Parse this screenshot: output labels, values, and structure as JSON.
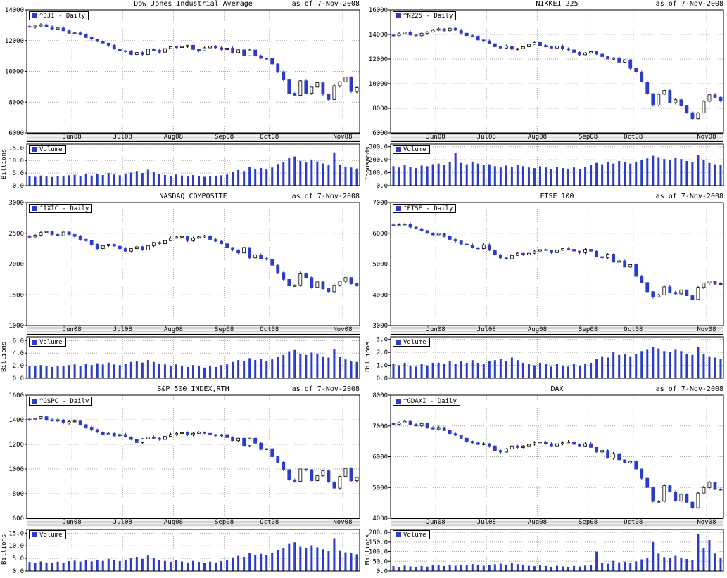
{
  "colors": {
    "candle": "#2a3cc8",
    "volume_bar": "#2a3cc8",
    "grid": "#aaaaaa",
    "axis": "#000000",
    "band": "#e0e0e0"
  },
  "chart_data": [
    {
      "type": "candlestick",
      "title": "Dow Jones Industrial Average",
      "as_of": "as of  7-Nov-2008",
      "symbol_legend": "^DJI - Daily",
      "volume_legend": "Volume",
      "vol_axis_label": "Billions",
      "y_min": 6000,
      "y_max": 14000,
      "y_ticks": [
        6000,
        8000,
        10000,
        12000,
        14000
      ],
      "vol_ticks": [
        0,
        5,
        10,
        15
      ],
      "vol_max": 16.5,
      "x_labels": [
        "Jun08",
        "Jul08",
        "Aug08",
        "Sep08",
        "Oct08",
        "Nov08"
      ],
      "x_start_indices": [
        8,
        17,
        26,
        35,
        43,
        56
      ],
      "closes": [
        12870,
        12950,
        13030,
        12900,
        12750,
        12820,
        12640,
        12480,
        12500,
        12380,
        12200,
        12100,
        11950,
        11840,
        11700,
        11450,
        11350,
        11290,
        11100,
        11230,
        11100,
        11450,
        11370,
        11250,
        11480,
        11600,
        11550,
        11620,
        11700,
        11430,
        11350,
        11530,
        11650,
        11540,
        11420,
        11510,
        11220,
        11400,
        11020,
        11390,
        11020,
        10850,
        10830,
        10480,
        9955,
        9450,
        8580,
        8450,
        9390,
        8580,
        8980,
        9265,
        8520,
        8175,
        9065,
        9325,
        9625,
        8695,
        8945
      ],
      "volumes": [
        3.8,
        3.5,
        4.0,
        3.6,
        3.4,
        3.9,
        3.6,
        4.1,
        4.3,
        3.9,
        4.5,
        4.0,
        4.6,
        4.2,
        5.0,
        4.4,
        4.1,
        4.6,
        5.2,
        5.8,
        5.0,
        6.3,
        5.4,
        4.6,
        4.2,
        3.9,
        4.4,
        4.0,
        3.6,
        4.2,
        3.8,
        3.5,
        3.9,
        3.6,
        4.1,
        4.4,
        5.6,
        6.2,
        5.8,
        7.4,
        6.6,
        7.0,
        6.4,
        7.2,
        8.6,
        9.4,
        11.2,
        11.6,
        9.8,
        9.2,
        10.4,
        9.6,
        8.8,
        8.2,
        13.2,
        8.4,
        7.6,
        7.2,
        6.8
      ]
    },
    {
      "type": "candlestick",
      "title": "NIKKEI 225",
      "as_of": "as of  7-Nov-2008",
      "symbol_legend": "^N225 - Daily",
      "volume_legend": "Volume",
      "vol_axis_label": "Thousands",
      "y_min": 6000,
      "y_max": 16000,
      "y_ticks": [
        6000,
        8000,
        10000,
        12000,
        14000,
        16000
      ],
      "vol_ticks": [
        0,
        100,
        200,
        300
      ],
      "vol_max": 320,
      "x_labels": [
        "Jun08",
        "Jul08",
        "Aug08",
        "Sep08",
        "Oct08",
        "Nov08"
      ],
      "x_start_indices": [
        8,
        17,
        26,
        35,
        43,
        56
      ],
      "closes": [
        13900,
        14050,
        14200,
        13950,
        13900,
        14100,
        14200,
        14350,
        14450,
        14300,
        14500,
        14350,
        14100,
        13900,
        13850,
        13550,
        13480,
        13250,
        13000,
        12900,
        13050,
        12800,
        12850,
        13000,
        13200,
        13350,
        13100,
        13000,
        12900,
        13050,
        12850,
        12750,
        12550,
        12350,
        12500,
        12600,
        12400,
        12200,
        12000,
        12100,
        11750,
        11900,
        11250,
        10950,
        10150,
        9200,
        8250,
        9150,
        9450,
        8450,
        8700,
        8200,
        7650,
        7160,
        7620,
        8580,
        9100,
        8900,
        8583
      ],
      "volumes": [
        150,
        140,
        160,
        145,
        135,
        155,
        150,
        165,
        170,
        160,
        180,
        250,
        175,
        165,
        185,
        170,
        160,
        165,
        150,
        140,
        155,
        145,
        160,
        150,
        140,
        135,
        150,
        140,
        130,
        145,
        135,
        125,
        140,
        130,
        145,
        160,
        175,
        165,
        185,
        170,
        190,
        180,
        170,
        185,
        200,
        210,
        230,
        220,
        205,
        195,
        215,
        205,
        190,
        180,
        235,
        195,
        175,
        165,
        160
      ]
    },
    {
      "type": "candlestick",
      "title": "NASDAQ COMPOSITE",
      "as_of": "as of  7-Nov-2008",
      "symbol_legend": "^IXIC - Daily",
      "volume_legend": "Volume",
      "vol_axis_label": "Billions",
      "y_min": 1000,
      "y_max": 3000,
      "y_ticks": [
        1000,
        1500,
        2000,
        2500,
        3000
      ],
      "vol_ticks": [
        0,
        2,
        4,
        6
      ],
      "vol_max": 6.6,
      "x_labels": [
        "Jun08",
        "Jul08",
        "Aug08",
        "Sep08",
        "Oct08",
        "Nov08"
      ],
      "x_start_indices": [
        8,
        17,
        26,
        35,
        43,
        56
      ],
      "closes": [
        2440,
        2470,
        2510,
        2530,
        2480,
        2460,
        2520,
        2480,
        2450,
        2400,
        2380,
        2320,
        2250,
        2300,
        2320,
        2290,
        2250,
        2210,
        2250,
        2280,
        2230,
        2300,
        2350,
        2330,
        2380,
        2420,
        2440,
        2450,
        2380,
        2420,
        2440,
        2460,
        2400,
        2370,
        2330,
        2270,
        2230,
        2180,
        2270,
        2100,
        2150,
        2090,
        2080,
        1980,
        1860,
        1750,
        1645,
        1650,
        1850,
        1780,
        1620,
        1710,
        1600,
        1550,
        1650,
        1720,
        1780,
        1680,
        1647
      ],
      "volumes": [
        2.0,
        1.9,
        2.1,
        1.9,
        1.8,
        2.0,
        1.9,
        2.1,
        2.2,
        2.0,
        2.3,
        2.1,
        2.4,
        2.2,
        2.5,
        2.2,
        2.1,
        2.3,
        2.6,
        2.8,
        2.5,
        2.9,
        2.6,
        2.3,
        2.2,
        2.0,
        2.2,
        2.0,
        1.8,
        2.1,
        1.9,
        1.7,
        2.0,
        1.8,
        2.1,
        2.2,
        2.6,
        2.9,
        2.7,
        3.2,
        2.9,
        3.1,
        2.8,
        3.0,
        3.4,
        3.7,
        4.3,
        4.5,
        3.9,
        3.7,
        4.1,
        3.8,
        3.5,
        3.3,
        4.6,
        3.4,
        3.0,
        2.8,
        2.6
      ]
    },
    {
      "type": "candlestick",
      "title": "FTSE 100",
      "as_of": "as of  7-Nov-2008",
      "symbol_legend": "^FTSE - Daily",
      "volume_legend": "Volume",
      "vol_axis_label": "Billions",
      "y_min": 3000,
      "y_max": 7000,
      "y_ticks": [
        3000,
        4000,
        5000,
        6000,
        7000
      ],
      "vol_ticks": [
        0,
        1,
        2,
        3
      ],
      "vol_max": 3.2,
      "x_labels": [
        "Jun08",
        "Jul08",
        "Aug08",
        "Sep08",
        "Oct08",
        "Nov08"
      ],
      "x_start_indices": [
        8,
        17,
        26,
        35,
        43,
        56
      ],
      "closes": [
        6250,
        6280,
        6300,
        6200,
        6150,
        6090,
        6000,
        5950,
        6000,
        5900,
        5800,
        5750,
        5650,
        5620,
        5530,
        5500,
        5625,
        5450,
        5300,
        5200,
        5170,
        5280,
        5350,
        5300,
        5350,
        5420,
        5470,
        5450,
        5370,
        5450,
        5500,
        5480,
        5420,
        5370,
        5480,
        5420,
        5240,
        5200,
        5320,
        5060,
        5100,
        4900,
        4980,
        4600,
        4400,
        4100,
        3930,
        4000,
        4260,
        4080,
        4030,
        4160,
        3970,
        3850,
        4240,
        4380,
        4450,
        4350,
        4365
      ],
      "volumes": [
        1.1,
        1.0,
        1.2,
        1.0,
        0.9,
        1.1,
        1.0,
        1.2,
        1.2,
        1.1,
        1.3,
        1.1,
        1.3,
        1.2,
        1.4,
        1.2,
        1.1,
        1.3,
        1.4,
        1.5,
        1.3,
        1.6,
        1.4,
        1.2,
        1.1,
        1.0,
        1.2,
        1.1,
        0.9,
        1.1,
        1.0,
        0.9,
        1.1,
        1.0,
        1.1,
        1.2,
        1.5,
        1.7,
        1.6,
        2.0,
        1.8,
        1.9,
        1.7,
        1.9,
        2.1,
        2.2,
        2.4,
        2.3,
        2.1,
        2.0,
        2.2,
        2.1,
        1.9,
        1.8,
        2.4,
        1.9,
        1.7,
        1.6,
        1.5
      ]
    },
    {
      "type": "candlestick",
      "title": "S&P 500 INDEX,RTH",
      "as_of": "as of  7-Nov-2008",
      "symbol_legend": "^GSPC - Daily",
      "volume_legend": "Volume",
      "vol_axis_label": "Billions",
      "y_min": 600,
      "y_max": 1600,
      "y_ticks": [
        600,
        800,
        1000,
        1200,
        1400,
        1600
      ],
      "vol_ticks": [
        0,
        5,
        10,
        15
      ],
      "vol_max": 16.5,
      "x_labels": [
        "Jun08",
        "Jul08",
        "Aug08",
        "Sep08",
        "Oct08",
        "Nov08"
      ],
      "x_start_indices": [
        8,
        17,
        26,
        35,
        43,
        56
      ],
      "closes": [
        1400,
        1410,
        1425,
        1400,
        1390,
        1400,
        1375,
        1385,
        1390,
        1360,
        1340,
        1320,
        1300,
        1280,
        1290,
        1270,
        1280,
        1260,
        1240,
        1215,
        1245,
        1260,
        1250,
        1240,
        1265,
        1280,
        1290,
        1295,
        1280,
        1290,
        1300,
        1290,
        1280,
        1270,
        1280,
        1255,
        1230,
        1250,
        1190,
        1250,
        1210,
        1160,
        1165,
        1100,
        1055,
        995,
        910,
        900,
        1000,
        995,
        905,
        945,
        985,
        895,
        845,
        940,
        1005,
        905,
        931
      ],
      "volumes": [
        3.6,
        3.3,
        3.8,
        3.4,
        3.2,
        3.7,
        3.4,
        3.9,
        4.1,
        3.7,
        4.3,
        3.8,
        4.4,
        4.0,
        4.8,
        4.2,
        3.9,
        4.4,
        5.0,
        5.6,
        4.8,
        6.1,
        5.2,
        4.4,
        4.0,
        3.7,
        4.2,
        3.8,
        3.4,
        4.0,
        3.6,
        3.3,
        3.7,
        3.4,
        3.9,
        4.2,
        5.4,
        6.0,
        5.6,
        7.2,
        6.4,
        6.8,
        6.2,
        7.0,
        8.4,
        9.2,
        11.0,
        11.4,
        9.6,
        9.0,
        10.2,
        9.4,
        8.6,
        8.0,
        13.0,
        8.2,
        7.4,
        7.0,
        6.6
      ]
    },
    {
      "type": "candlestick",
      "title": "DAX",
      "as_of": "as of  7-Nov-2008",
      "symbol_legend": "^GDAXI - Daily",
      "volume_legend": "Volume",
      "vol_axis_label": "Millions",
      "y_min": 4000,
      "y_max": 8000,
      "y_ticks": [
        4000,
        5000,
        6000,
        7000,
        8000
      ],
      "vol_ticks": [
        0,
        50,
        100,
        150,
        200
      ],
      "vol_max": 215,
      "x_labels": [
        "Jun08",
        "Jul08",
        "Aug08",
        "Sep08",
        "Oct08",
        "Nov08"
      ],
      "x_start_indices": [
        8,
        17,
        26,
        35,
        43,
        56
      ],
      "closes": [
        7050,
        7100,
        7150,
        7050,
        7000,
        7080,
        6950,
        6900,
        6950,
        6850,
        6750,
        6700,
        6600,
        6500,
        6450,
        6400,
        6420,
        6350,
        6200,
        6150,
        6250,
        6350,
        6300,
        6350,
        6400,
        6450,
        6480,
        6420,
        6350,
        6420,
        6450,
        6480,
        6400,
        6350,
        6420,
        6300,
        6150,
        6200,
        5950,
        6100,
        5900,
        5800,
        5850,
        5600,
        5300,
        5000,
        4550,
        4550,
        5060,
        4860,
        4560,
        4780,
        4520,
        4340,
        4820,
        5000,
        5170,
        4940,
        4938
      ],
      "volumes": [
        25,
        22,
        28,
        24,
        21,
        26,
        23,
        29,
        30,
        26,
        32,
        27,
        33,
        29,
        36,
        30,
        27,
        31,
        35,
        38,
        33,
        41,
        36,
        30,
        27,
        25,
        29,
        26,
        22,
        27,
        24,
        21,
        26,
        23,
        28,
        30,
        100,
        42,
        38,
        52,
        45,
        48,
        42,
        50,
        60,
        68,
        150,
        90,
        72,
        66,
        78,
        70,
        62,
        58,
        190,
        120,
        160,
        90,
        70
      ]
    }
  ]
}
